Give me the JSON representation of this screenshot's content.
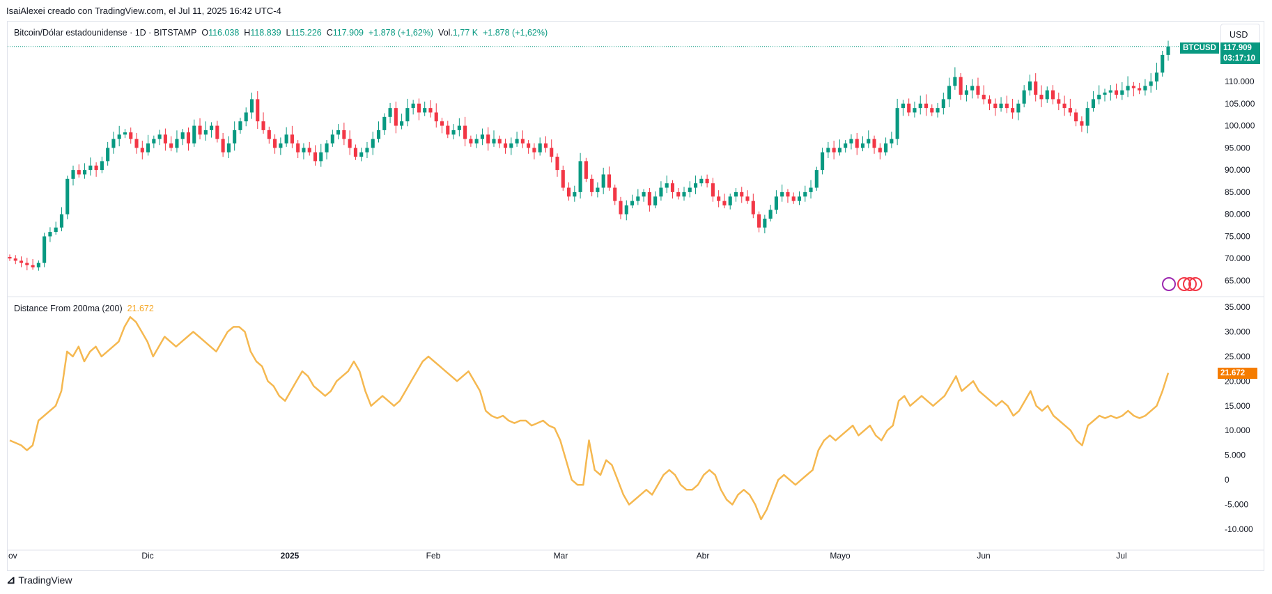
{
  "header": {
    "text": "IsaiAlexei creado con TradingView.com, el Jul 11, 2025 16:42 UTC-4"
  },
  "legend": {
    "symbol": "Bitcoin/Dólar estadounidense · 1D · BITSTAMP",
    "o_label": "O",
    "o_value": "116.038",
    "h_label": "H",
    "h_value": "118.839",
    "l_label": "L",
    "l_value": "115.226",
    "c_label": "C",
    "c_value": "117.909",
    "change": "+1.878 (+1,62%)",
    "vol_label": "Vol.",
    "vol_value": "1,77 K",
    "vol_change": "+1.878 (+1,62%)"
  },
  "currency_button": "USD",
  "price_tag": {
    "symbol": "BTCUSD",
    "price": "117.909",
    "countdown": "03:17:10"
  },
  "indicator": {
    "name": "Distance From 200ma (200)",
    "value": "21.672"
  },
  "footer_logo": "TradingView",
  "colors": {
    "up": "#089981",
    "down": "#f23645",
    "indicator": "#f5b850",
    "grid": "#f0f3fa",
    "tag_green": "#089981",
    "tag_orange": "#f57c00"
  },
  "chart_data": [
    {
      "type": "candlestick",
      "title": "Bitcoin/Dólar estadounidense · 1D · BITSTAMP",
      "x_tick_labels": [
        "ov",
        "Dic",
        "2025",
        "Feb",
        "Mar",
        "Abr",
        "Mayo",
        "Jun",
        "Jul"
      ],
      "y_tick_labels": [
        "65.000",
        "70.000",
        "75.000",
        "80.000",
        "85.000",
        "90.000",
        "95.000",
        "100.000",
        "105.000",
        "110.000"
      ],
      "ylim": [
        62000,
        124000
      ],
      "close_series": [
        70000,
        69500,
        69000,
        68500,
        68000,
        69000,
        75000,
        76000,
        77000,
        80000,
        88000,
        90000,
        89000,
        90000,
        91000,
        90000,
        92000,
        95000,
        97000,
        98000,
        98500,
        97000,
        95000,
        94000,
        96000,
        97000,
        98000,
        96000,
        95000,
        97000,
        98500,
        96000,
        100000,
        98000,
        99000,
        100000,
        97000,
        94000,
        96000,
        99000,
        101000,
        103000,
        106000,
        101000,
        99000,
        97000,
        95000,
        96000,
        98000,
        96000,
        94000,
        95000,
        94000,
        92000,
        94000,
        96000,
        98000,
        99000,
        97000,
        95000,
        93000,
        94000,
        95000,
        97000,
        99000,
        102000,
        104000,
        100000,
        101000,
        104000,
        105000,
        103000,
        104000,
        103000,
        101000,
        100000,
        98000,
        99000,
        100000,
        97000,
        96000,
        97000,
        98000,
        96000,
        97000,
        96000,
        95000,
        96000,
        97000,
        96000,
        95000,
        94000,
        96000,
        95000,
        93000,
        90000,
        86000,
        84000,
        85000,
        92000,
        88000,
        85000,
        86000,
        89000,
        86000,
        83000,
        80000,
        82000,
        83000,
        84000,
        85000,
        82000,
        84000,
        86000,
        87000,
        85000,
        84000,
        85000,
        86000,
        87000,
        88000,
        87000,
        84000,
        83000,
        82000,
        84000,
        85000,
        84000,
        83000,
        80000,
        77000,
        79000,
        81000,
        84000,
        85000,
        84000,
        83000,
        84000,
        85000,
        86000,
        90000,
        94000,
        95000,
        94000,
        95000,
        96000,
        97000,
        95000,
        96000,
        97000,
        95000,
        94000,
        96000,
        97000,
        104000,
        105000,
        103000,
        104000,
        105000,
        104000,
        103000,
        104000,
        106000,
        109000,
        111000,
        107000,
        108000,
        109000,
        107000,
        106000,
        105000,
        104000,
        105000,
        104000,
        103000,
        105000,
        108000,
        110000,
        107000,
        106000,
        108000,
        106000,
        105000,
        104000,
        103000,
        101000,
        100000,
        104000,
        106000,
        107000,
        107500,
        108000,
        107000,
        108000,
        109000,
        108500,
        108000,
        109000,
        110000,
        112000,
        116000,
        117909
      ],
      "last": {
        "open": 116038,
        "high": 118839,
        "low": 115226,
        "close": 117909
      }
    },
    {
      "type": "line",
      "series": [
        {
          "name": "Distance From 200ma (200)",
          "values": [
            8,
            7.5,
            7,
            6,
            7,
            12,
            13,
            14,
            15,
            18,
            26,
            25,
            27,
            24,
            26,
            27,
            25,
            26,
            27,
            28,
            31,
            33,
            32,
            30,
            28,
            25,
            27,
            29,
            28,
            27,
            28,
            29,
            30,
            29,
            28,
            27,
            26,
            28,
            30,
            31,
            31,
            30,
            26,
            24,
            23,
            20,
            19,
            17,
            16,
            18,
            20,
            22,
            21,
            19,
            18,
            17,
            18,
            20,
            21,
            22,
            24,
            22,
            18,
            15,
            16,
            17,
            16,
            15,
            16,
            18,
            20,
            22,
            24,
            25,
            24,
            23,
            22,
            21,
            20,
            21,
            22,
            20,
            18,
            14,
            13,
            12.5,
            13,
            12,
            11.5,
            12,
            12,
            11,
            11.5,
            12,
            11,
            10.5,
            8,
            4,
            0,
            -1,
            -1,
            8,
            2,
            1,
            4,
            3,
            0,
            -3,
            -5,
            -4,
            -3,
            -2,
            -3,
            -1,
            1,
            2,
            1,
            -1,
            -2,
            -2,
            -1,
            1,
            2,
            1,
            -2,
            -4,
            -5,
            -3,
            -2,
            -3,
            -5,
            -8,
            -6,
            -3,
            0,
            1,
            0,
            -1,
            0,
            1,
            2,
            6,
            8,
            9,
            8,
            9,
            10,
            11,
            9,
            10,
            11,
            9,
            8,
            10,
            11,
            16,
            17,
            15,
            16,
            17,
            16,
            15,
            16,
            17,
            19,
            21,
            18,
            19,
            20,
            18,
            17,
            16,
            15,
            16,
            15,
            13,
            14,
            16,
            18,
            15,
            14,
            15,
            13,
            12,
            11,
            10,
            8,
            7,
            11,
            12,
            13,
            12.5,
            13,
            12.5,
            13,
            14,
            13,
            12.5,
            13,
            14,
            15,
            18,
            21.672
          ]
        }
      ],
      "x_tick_labels": [
        "ov",
        "Dic",
        "2025",
        "Feb",
        "Mar",
        "Abr",
        "Mayo",
        "Jun",
        "Jul"
      ],
      "y_tick_labels": [
        "-10.000",
        "-5.000",
        "0",
        "5.000",
        "10.000",
        "15.000",
        "20.000",
        "25.000",
        "30.000",
        "35.000"
      ],
      "ylim": [
        -11,
        36
      ]
    }
  ]
}
